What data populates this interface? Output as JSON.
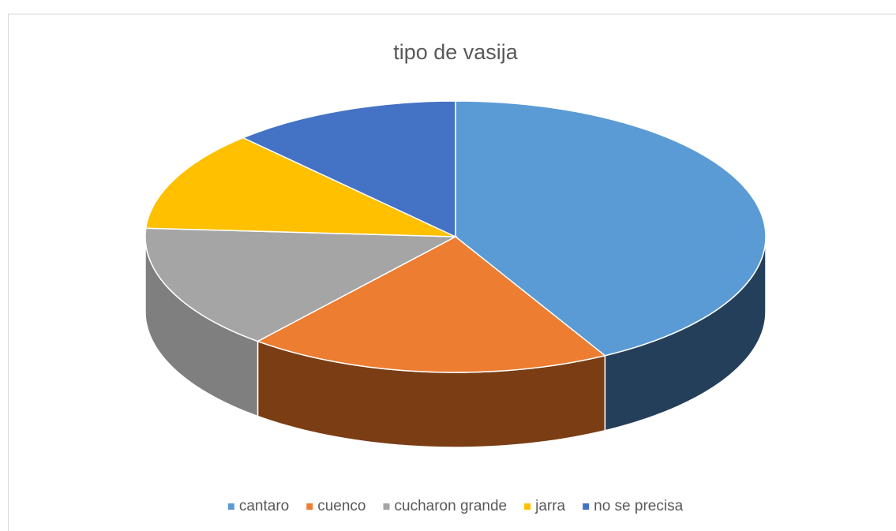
{
  "chart_data": {
    "type": "pie",
    "title": "tipo de vasija",
    "categories": [
      "cantaro",
      "cuenco",
      "cucharon grande",
      "jarra",
      "no se precisa"
    ],
    "values": [
      42,
      19,
      15,
      12,
      12
    ],
    "colors": [
      "#5b9bd5",
      "#ed7d31",
      "#a5a5a5",
      "#ffc000",
      "#4472c4"
    ],
    "side_colors": [
      "#243f5a",
      "#7a3d14",
      "#7f7f7f",
      "#8a6800",
      "#2a4a80"
    ],
    "legend": "bottom",
    "three_d": true
  }
}
